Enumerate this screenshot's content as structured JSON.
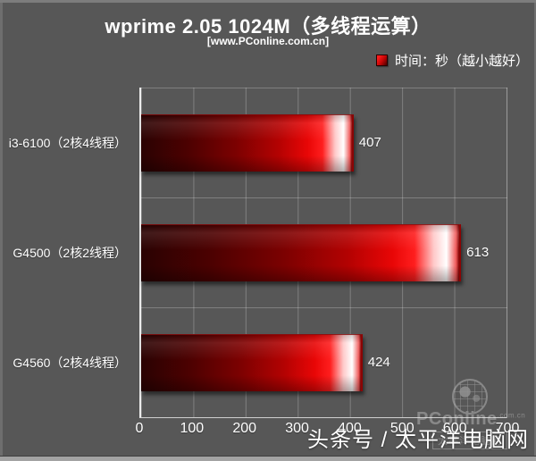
{
  "header": {
    "title": "wprime 2.05 1024M（多线程运算）",
    "subtitle": "[www.PConline.com.cn]"
  },
  "legend": {
    "label": "时间：秒（越小越好）",
    "swatch_color": "#d40505"
  },
  "chart_data": {
    "type": "bar",
    "orientation": "horizontal",
    "title": "wprime 2.05 1024M（多线程运算）",
    "xlabel": "",
    "ylabel": "",
    "categories": [
      "i3-6100（2核4线程）",
      "G4500（2核2线程）",
      "G4560（2核4线程）"
    ],
    "values": [
      407,
      613,
      424
    ],
    "unit": "秒",
    "xlim": [
      0,
      700
    ],
    "xticks": [
      0,
      100,
      200,
      300,
      400,
      500,
      600,
      700
    ],
    "grid": true,
    "legend_position": "top-right",
    "bar_color_gradient": [
      "#2a0202",
      "#e80606",
      "#ffffff"
    ]
  },
  "watermark": {
    "brand": "PConline",
    "tld": ".com.cn",
    "sub": "太平洋电脑网"
  },
  "footer": {
    "caption": "头条号 / 太平洋电脑网"
  },
  "colors": {
    "background": "#575757",
    "text": "#ffffff",
    "gridline": "rgba(255,255,255,0.24)",
    "axis": "#ececec",
    "bar_main": "#d40505"
  }
}
